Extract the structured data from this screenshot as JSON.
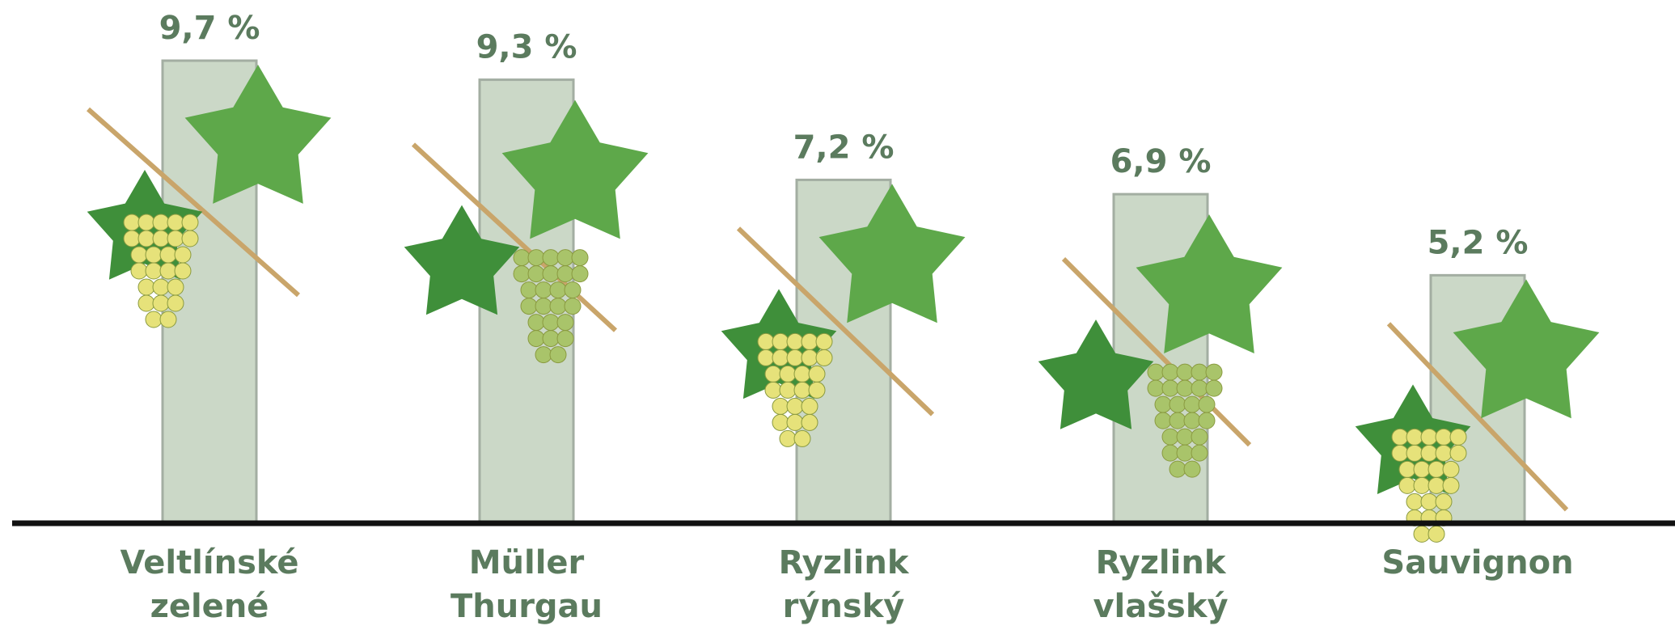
{
  "chart_data": {
    "type": "bar",
    "categories": [
      [
        "Veltlínské",
        "zelené"
      ],
      [
        "Müller",
        "Thurgau"
      ],
      [
        "Ryzlink",
        "rýnský"
      ],
      [
        "Ryzlink",
        "vlašský"
      ],
      [
        "Sauvignon"
      ]
    ],
    "values": [
      9.7,
      9.3,
      7.2,
      6.9,
      5.2
    ],
    "value_labels": [
      "9,7 %",
      "9,3 %",
      "7,2 %",
      "6,9 %",
      "5,2 %"
    ],
    "color": "#cbd8c7"
  }
}
